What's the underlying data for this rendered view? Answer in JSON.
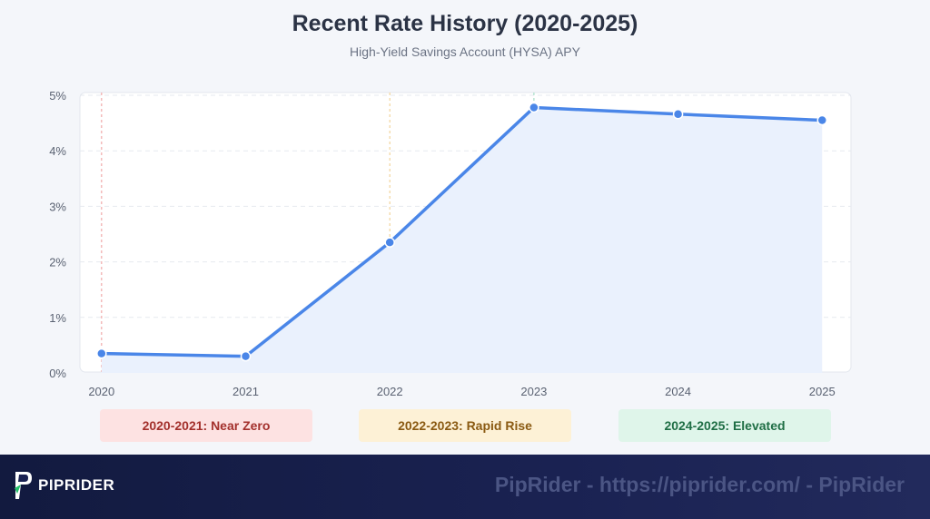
{
  "header": {
    "title": "Recent Rate History (2020-2025)",
    "subtitle": "High-Yield Savings Account (HYSA) APY"
  },
  "chart_data": {
    "type": "area",
    "title": "Recent Rate History (2020-2025)",
    "subtitle": "High-Yield Savings Account (HYSA) APY",
    "x": [
      2020,
      2021,
      2022,
      2023,
      2024,
      2025
    ],
    "x_tick_labels": [
      "2020",
      "2021",
      "2022",
      "2023",
      "2024",
      "2025"
    ],
    "series": [
      {
        "values": [
          0.35,
          0.3,
          2.35,
          4.78,
          4.66,
          4.55
        ],
        "color": "#4a86e8"
      }
    ],
    "ylim": [
      0,
      5
    ],
    "y_ticks": [
      0,
      1,
      2,
      3,
      4,
      5
    ],
    "y_tick_labels": [
      "0%",
      "1%",
      "2%",
      "3%",
      "4%",
      "5%"
    ],
    "xlim": [
      2019.85,
      2025.2
    ],
    "grid": true,
    "period_markers": [
      {
        "x": 2020,
        "color": "#f0a8a8"
      },
      {
        "x": 2022,
        "color": "#f2d49a"
      },
      {
        "x": 2023,
        "color": "#a8dfc8"
      }
    ],
    "fill_color": "#eaf1fd"
  },
  "periods": [
    {
      "label": "2020-2021: Near Zero",
      "bg": "#fde2e2",
      "color": "#a3302c"
    },
    {
      "label": "2022-2023: Rapid Rise",
      "bg": "#fdf1d6",
      "color": "#8a5a12"
    },
    {
      "label": "2024-2025: Elevated",
      "bg": "#dff5ea",
      "color": "#1f6e45"
    }
  ],
  "footer": {
    "logo_text": "PIPRIDER",
    "watermark": "PipRider - https://piprider.com/ - PipRider"
  }
}
